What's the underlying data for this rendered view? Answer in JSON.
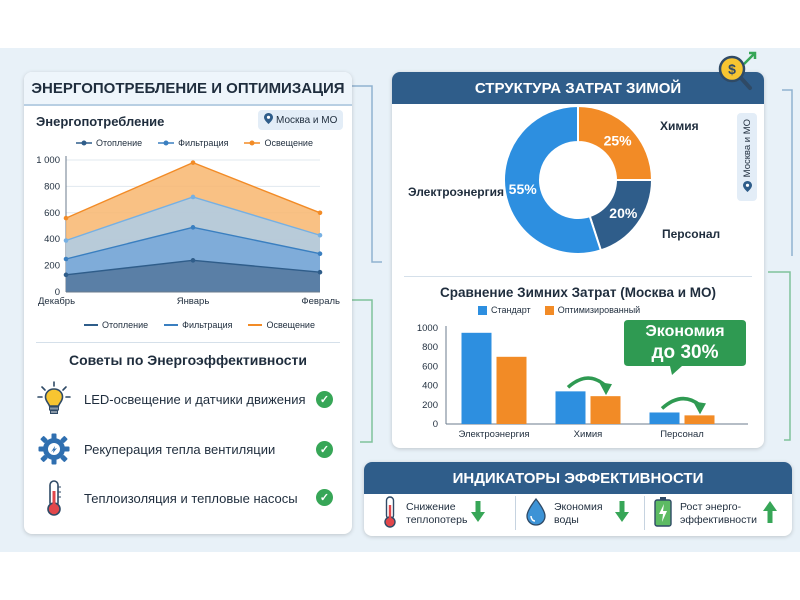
{
  "left_panel": {
    "title": "ЭНЕРГОПОТРЕБЛЕНИЕ И ОПТИМИЗАЦИЯ",
    "chart_title": "Энергопотребление",
    "location_badge": "Москва и МО",
    "tips_title": "Советы по Энергоэффективности",
    "tips": [
      {
        "icon": "lightbulb-icon",
        "text": "LED-освещение и датчики движения"
      },
      {
        "icon": "gear-icon",
        "text": "Рекуперация тепла вентиляции"
      },
      {
        "icon": "thermometer-icon",
        "text": "Теплоизоляция и тепловые насосы"
      }
    ]
  },
  "right_panel": {
    "title": "СТРУКТУРА ЗАТРАТ ЗИМОЙ",
    "location_badge": "Москва и МО",
    "savings_badge_line1": "Экономия",
    "savings_badge_line2": "до 30%"
  },
  "indicators": {
    "title": "ИНДИКАТОРЫ ЭФФЕКТИВНОСТИ",
    "items": [
      {
        "icon": "thermometer-icon",
        "line1": "Снижение",
        "line2": "теплопотерь",
        "trend": "down"
      },
      {
        "icon": "water-drop-icon",
        "line1": "Экономия",
        "line2": "воды",
        "trend": "down"
      },
      {
        "icon": "battery-icon",
        "line1": "Рост энерго-",
        "line2": "эффективности",
        "trend": "up"
      }
    ]
  },
  "colors": {
    "header_blue": "#2f5d8a",
    "heating": "#4a79a8",
    "filtration": "#6fa8dc",
    "lighting": "#f6a65a",
    "standard": "#2d8fe0",
    "optimized": "#f28b26",
    "check_green": "#37a657"
  },
  "chart_data": [
    {
      "type": "area",
      "title": "Энергопотребление",
      "categories": [
        "Декабрь",
        "Январь",
        "Февраль"
      ],
      "yticks": [
        "0",
        "200",
        "400",
        "600",
        "800",
        "1 000"
      ],
      "ylim": [
        0,
        1000
      ],
      "series": [
        {
          "name": "Отопление",
          "values": [
            130,
            240,
            150
          ]
        },
        {
          "name": "Фильтрация",
          "values": [
            250,
            490,
            290
          ]
        },
        {
          "name": "Освещение",
          "values": [
            390,
            720,
            430
          ]
        },
        {
          "name": "",
          "values": [
            560,
            980,
            600
          ]
        }
      ],
      "legend_position": "top-and-bottom"
    },
    {
      "type": "pie",
      "title": "СТРУКТУРА ЗАТРАТ ЗИМОЙ",
      "slices": [
        {
          "label": "Химия",
          "value": 25,
          "text": "25%"
        },
        {
          "label": "Персонал",
          "value": 20,
          "text": "20%"
        },
        {
          "label": "Электроэнергия",
          "value": 55,
          "text": "55%"
        }
      ]
    },
    {
      "type": "bar",
      "title": "Сравнение Зимних Затрат (Москва и МО)",
      "categories": [
        "Электроэнергия",
        "Химия",
        "Персонал"
      ],
      "yticks": [
        "0",
        "200",
        "400",
        "600",
        "800",
        "1000"
      ],
      "ylim": [
        0,
        1000
      ],
      "series": [
        {
          "name": "Стандарт",
          "values": [
            950,
            340,
            120
          ]
        },
        {
          "name": "Оптимизированный",
          "values": [
            700,
            290,
            90
          ]
        }
      ],
      "legend_position": "top"
    }
  ]
}
